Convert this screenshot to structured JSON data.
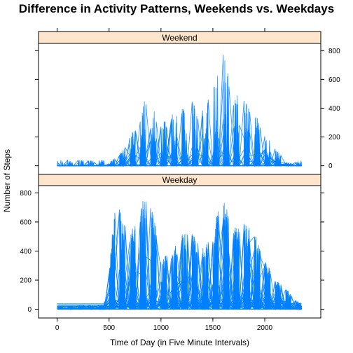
{
  "chart_data": {
    "type": "line",
    "title": "Difference in Activity Patterns, Weekends vs. Weekdays",
    "xlabel": "Time of Day (in Five Minute Intervals)",
    "ylabel": "Number of Steps",
    "xlim": [
      -180,
      2540
    ],
    "ylim": [
      -60,
      850
    ],
    "x_ticks": [
      0,
      500,
      1000,
      1500,
      2000
    ],
    "y_ticks": [
      0,
      200,
      400,
      600,
      800
    ],
    "series_color": "#0080ff",
    "strip_color": "#ffe5cc",
    "grid": false,
    "legend": "none",
    "panels": [
      {
        "name": "Weekend",
        "profile": [
          [
            0,
            0
          ],
          [
            450,
            0
          ],
          [
            500,
            20
          ],
          [
            600,
            80
          ],
          [
            700,
            200
          ],
          [
            800,
            350
          ],
          [
            850,
            520
          ],
          [
            900,
            460
          ],
          [
            1000,
            300
          ],
          [
            1100,
            350
          ],
          [
            1200,
            420
          ],
          [
            1300,
            450
          ],
          [
            1400,
            400
          ],
          [
            1500,
            520
          ],
          [
            1550,
            700
          ],
          [
            1600,
            780
          ],
          [
            1650,
            640
          ],
          [
            1700,
            500
          ],
          [
            1800,
            470
          ],
          [
            1900,
            380
          ],
          [
            2000,
            220
          ],
          [
            2100,
            130
          ],
          [
            2200,
            30
          ],
          [
            2300,
            5
          ],
          [
            2355,
            0
          ]
        ]
      },
      {
        "name": "Weekday",
        "profile": [
          [
            0,
            20
          ],
          [
            450,
            30
          ],
          [
            500,
            260
          ],
          [
            550,
            700
          ],
          [
            600,
            760
          ],
          [
            650,
            600
          ],
          [
            700,
            500
          ],
          [
            800,
            720
          ],
          [
            850,
            780
          ],
          [
            900,
            740
          ],
          [
            950,
            560
          ],
          [
            1000,
            360
          ],
          [
            1100,
            380
          ],
          [
            1200,
            520
          ],
          [
            1300,
            520
          ],
          [
            1400,
            420
          ],
          [
            1500,
            500
          ],
          [
            1550,
            690
          ],
          [
            1600,
            760
          ],
          [
            1700,
            560
          ],
          [
            1800,
            600
          ],
          [
            1900,
            520
          ],
          [
            2000,
            350
          ],
          [
            2100,
            200
          ],
          [
            2200,
            150
          ],
          [
            2300,
            60
          ],
          [
            2355,
            40
          ]
        ]
      }
    ]
  }
}
